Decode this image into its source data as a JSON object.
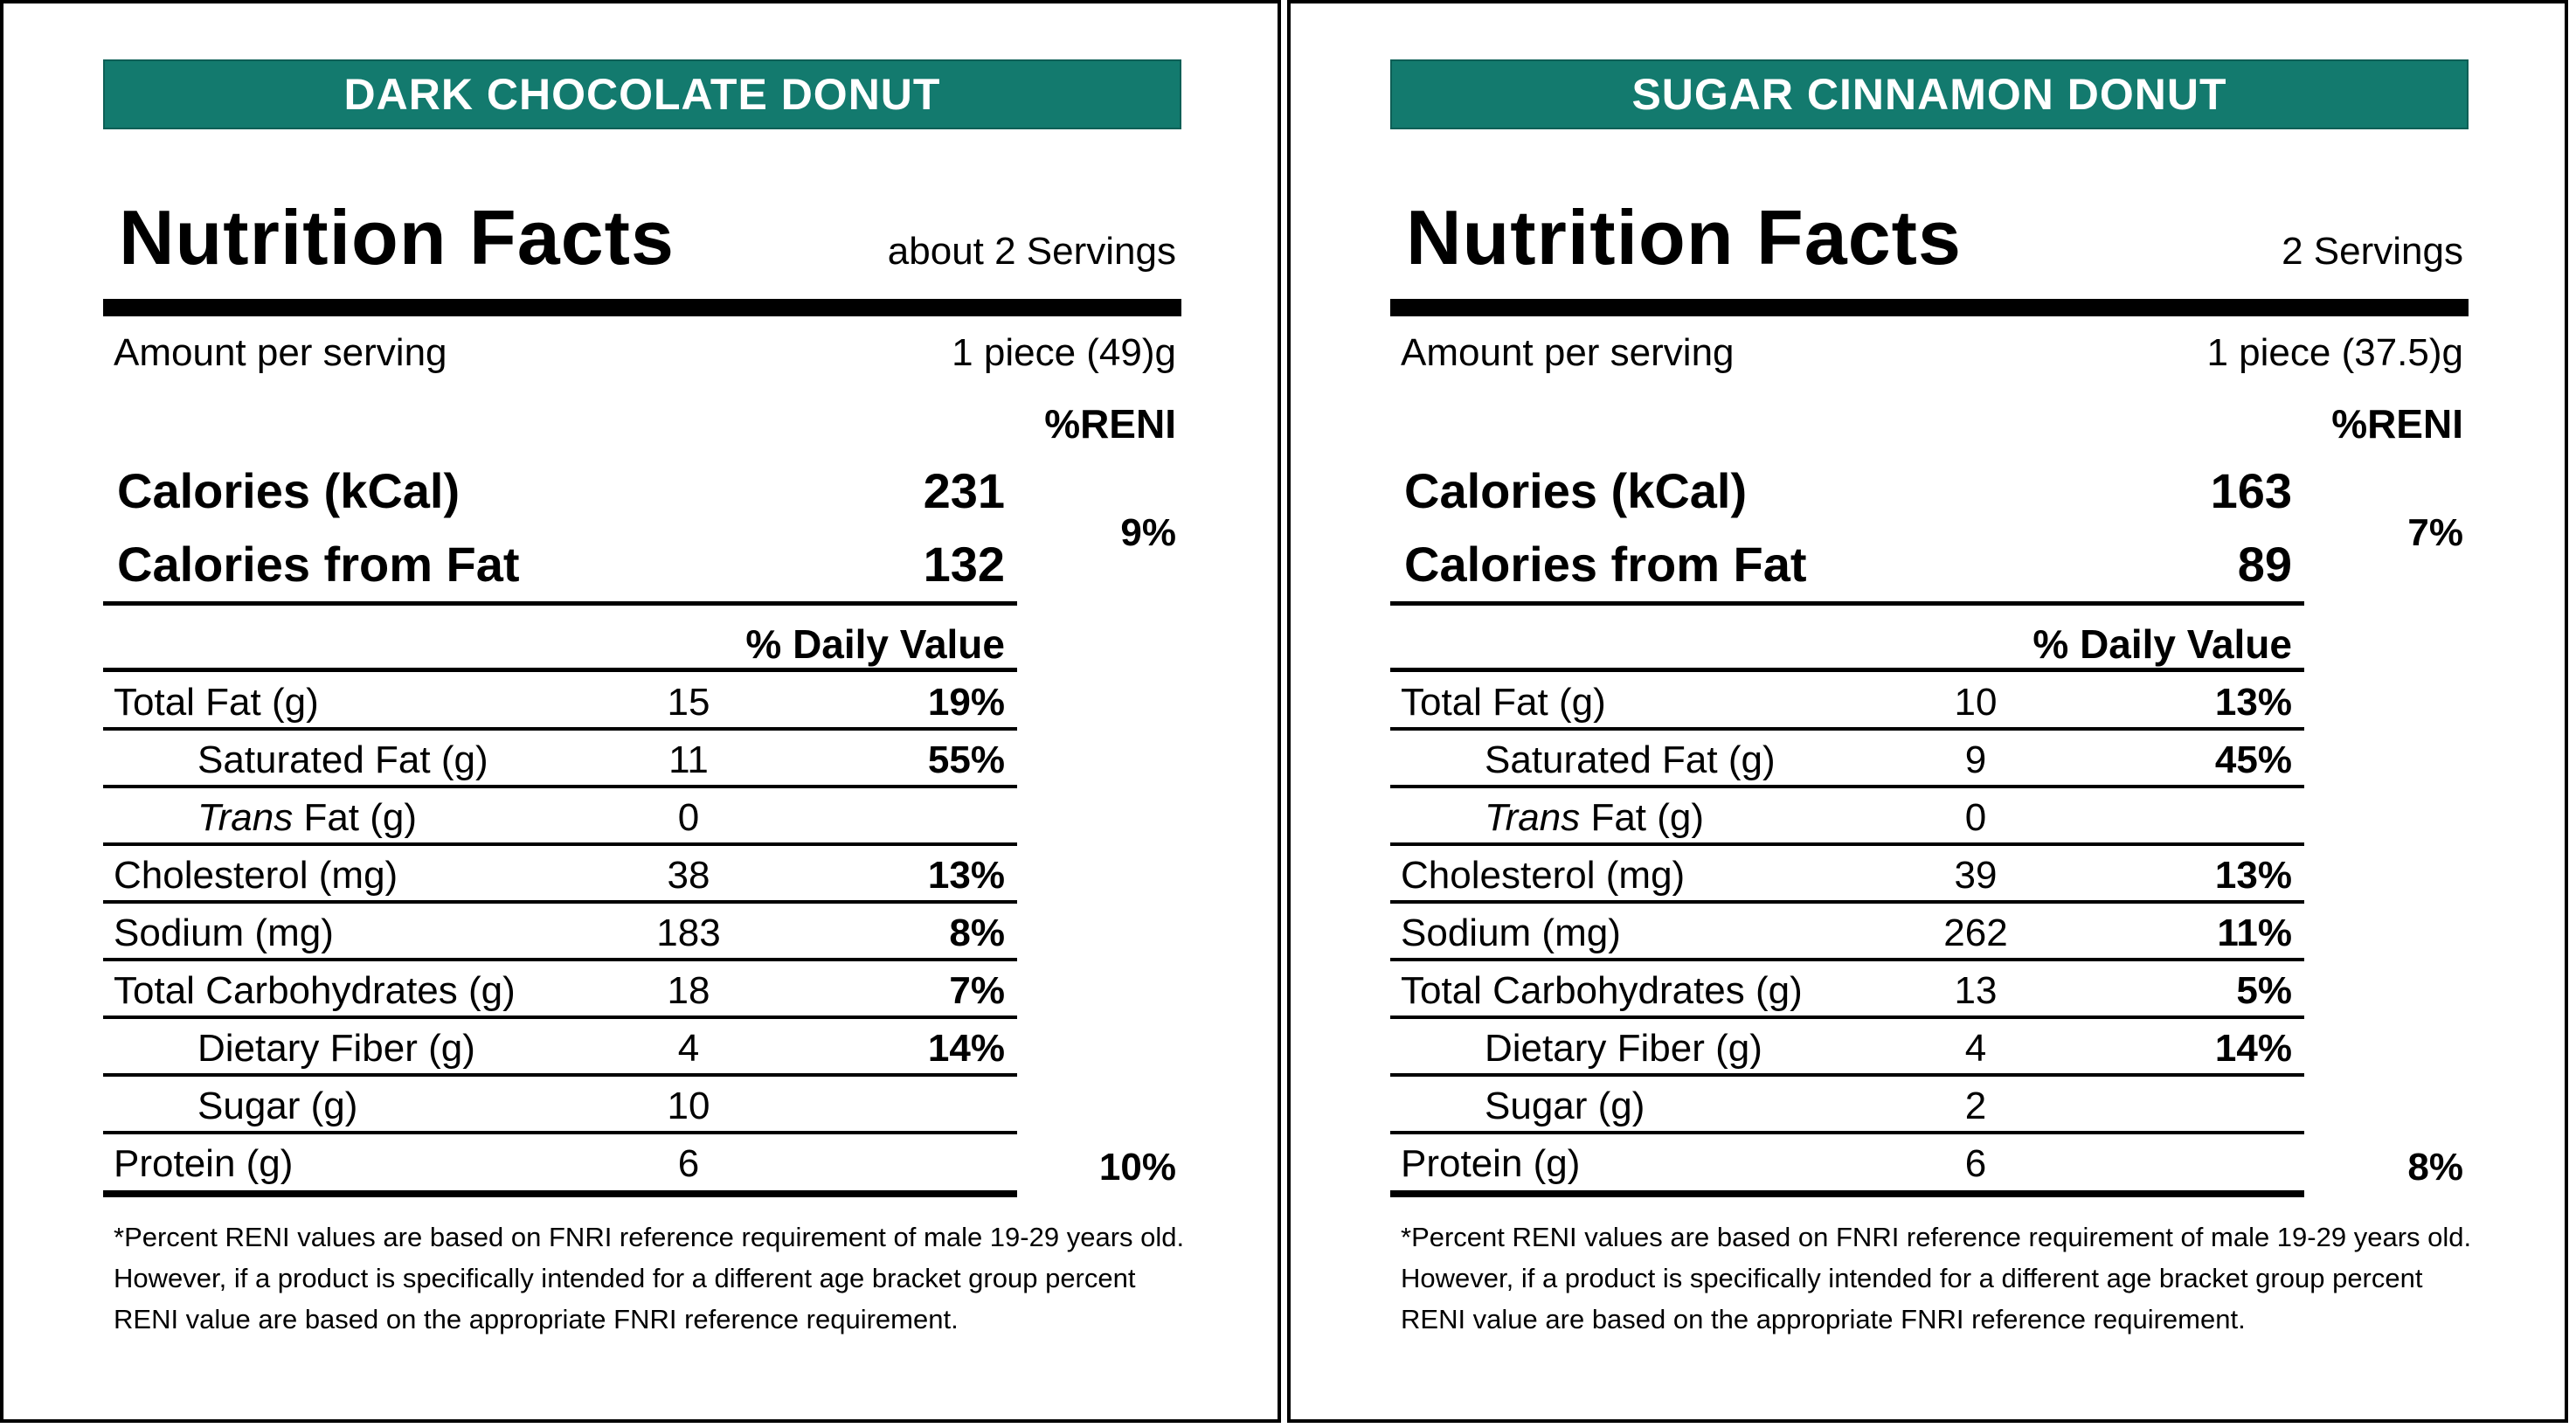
{
  "labels": [
    {
      "banner": "DARK CHOCOLATE DONUT",
      "title": "Nutrition Facts",
      "servings": "about 2 Servings",
      "amount_per_serving_label": "Amount per serving",
      "serving_size": "1 piece (49)g",
      "reni_header": "%RENI",
      "calories_label": "Calories (kCal)",
      "calories_value": "231",
      "calories_fat_label": "Calories from Fat",
      "calories_fat_value": "132",
      "calories_reni": "9%",
      "daily_value_header": "% Daily Value",
      "rows": [
        {
          "label": "Total Fat (g)",
          "amount": "15",
          "dv": "19%"
        },
        {
          "label": "Saturated Fat (g)",
          "amount": "11",
          "dv": "55%"
        },
        {
          "label_italic": "Trans",
          "label_rest": " Fat (g)",
          "amount": "0",
          "dv": ""
        },
        {
          "label": "Cholesterol (mg)",
          "amount": "38",
          "dv": "13%"
        },
        {
          "label": "Sodium (mg)",
          "amount": "183",
          "dv": "8%"
        },
        {
          "label": "Total Carbohydrates (g)",
          "amount": "18",
          "dv": "7%"
        },
        {
          "label": "Dietary Fiber (g)",
          "amount": "4",
          "dv": "14%"
        },
        {
          "label": "Sugar (g)",
          "amount": "10",
          "dv": ""
        },
        {
          "label": "Protein (g)",
          "amount": "6",
          "dv": ""
        }
      ],
      "protein_reni": "10%",
      "footnote": "*Percent RENI values are based on FNRI reference requirement of male 19-29 years old. However, if a product is specifically intended for a different age bracket group percent RENI value are based on the appropriate FNRI reference requirement."
    },
    {
      "banner": "SUGAR CINNAMON DONUT",
      "title": "Nutrition Facts",
      "servings": "2 Servings",
      "amount_per_serving_label": "Amount per serving",
      "serving_size": "1 piece (37.5)g",
      "reni_header": "%RENI",
      "calories_label": "Calories (kCal)",
      "calories_value": "163",
      "calories_fat_label": "Calories from Fat",
      "calories_fat_value": "89",
      "calories_reni": "7%",
      "daily_value_header": "% Daily Value",
      "rows": [
        {
          "label": "Total Fat (g)",
          "amount": "10",
          "dv": "13%"
        },
        {
          "label": "Saturated Fat (g)",
          "amount": "9",
          "dv": "45%"
        },
        {
          "label_italic": "Trans",
          "label_rest": " Fat (g)",
          "amount": "0",
          "dv": ""
        },
        {
          "label": "Cholesterol (mg)",
          "amount": "39",
          "dv": "13%"
        },
        {
          "label": "Sodium (mg)",
          "amount": "262",
          "dv": "11%"
        },
        {
          "label": "Total Carbohydrates (g)",
          "amount": "13",
          "dv": "5%"
        },
        {
          "label": "Dietary Fiber (g)",
          "amount": "4",
          "dv": "14%"
        },
        {
          "label": "Sugar (g)",
          "amount": "2",
          "dv": ""
        },
        {
          "label": "Protein (g)",
          "amount": "6",
          "dv": ""
        }
      ],
      "protein_reni": "8%",
      "footnote": "*Percent RENI values are based on FNRI reference requirement of male 19-29 years old. However, if a product is specifically intended for a different age bracket group percent RENI value are based on the appropriate FNRI reference requirement."
    }
  ],
  "colors": {
    "banner_bg": "#137a6e",
    "banner_text": "#ffffff"
  }
}
